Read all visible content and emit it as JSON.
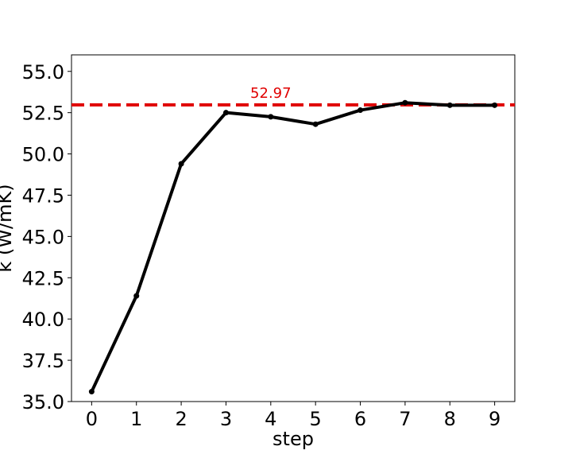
{
  "chart_data": {
    "type": "line",
    "xlabel": "step",
    "ylabel": "k (W/mK)",
    "x": [
      0,
      1,
      2,
      3,
      4,
      5,
      6,
      7,
      8,
      9
    ],
    "series": [
      {
        "values": [
          35.6,
          41.4,
          49.4,
          52.5,
          52.25,
          51.8,
          52.65,
          53.1,
          52.95,
          52.95
        ],
        "color": "#000000",
        "marker": "circle"
      }
    ],
    "reference_line": {
      "value": 52.97,
      "label": "52.97",
      "color": "#e00000",
      "style": "dashed"
    },
    "xlim": [
      -0.45,
      9.45
    ],
    "ylim": [
      35.0,
      56.0
    ],
    "xticks": [
      "0",
      "1",
      "2",
      "3",
      "4",
      "5",
      "6",
      "7",
      "8",
      "9"
    ],
    "yticks": [
      "35.0",
      "37.5",
      "40.0",
      "42.5",
      "45.0",
      "47.5",
      "50.0",
      "52.5",
      "55.0"
    ],
    "grid": false,
    "legend": false
  }
}
